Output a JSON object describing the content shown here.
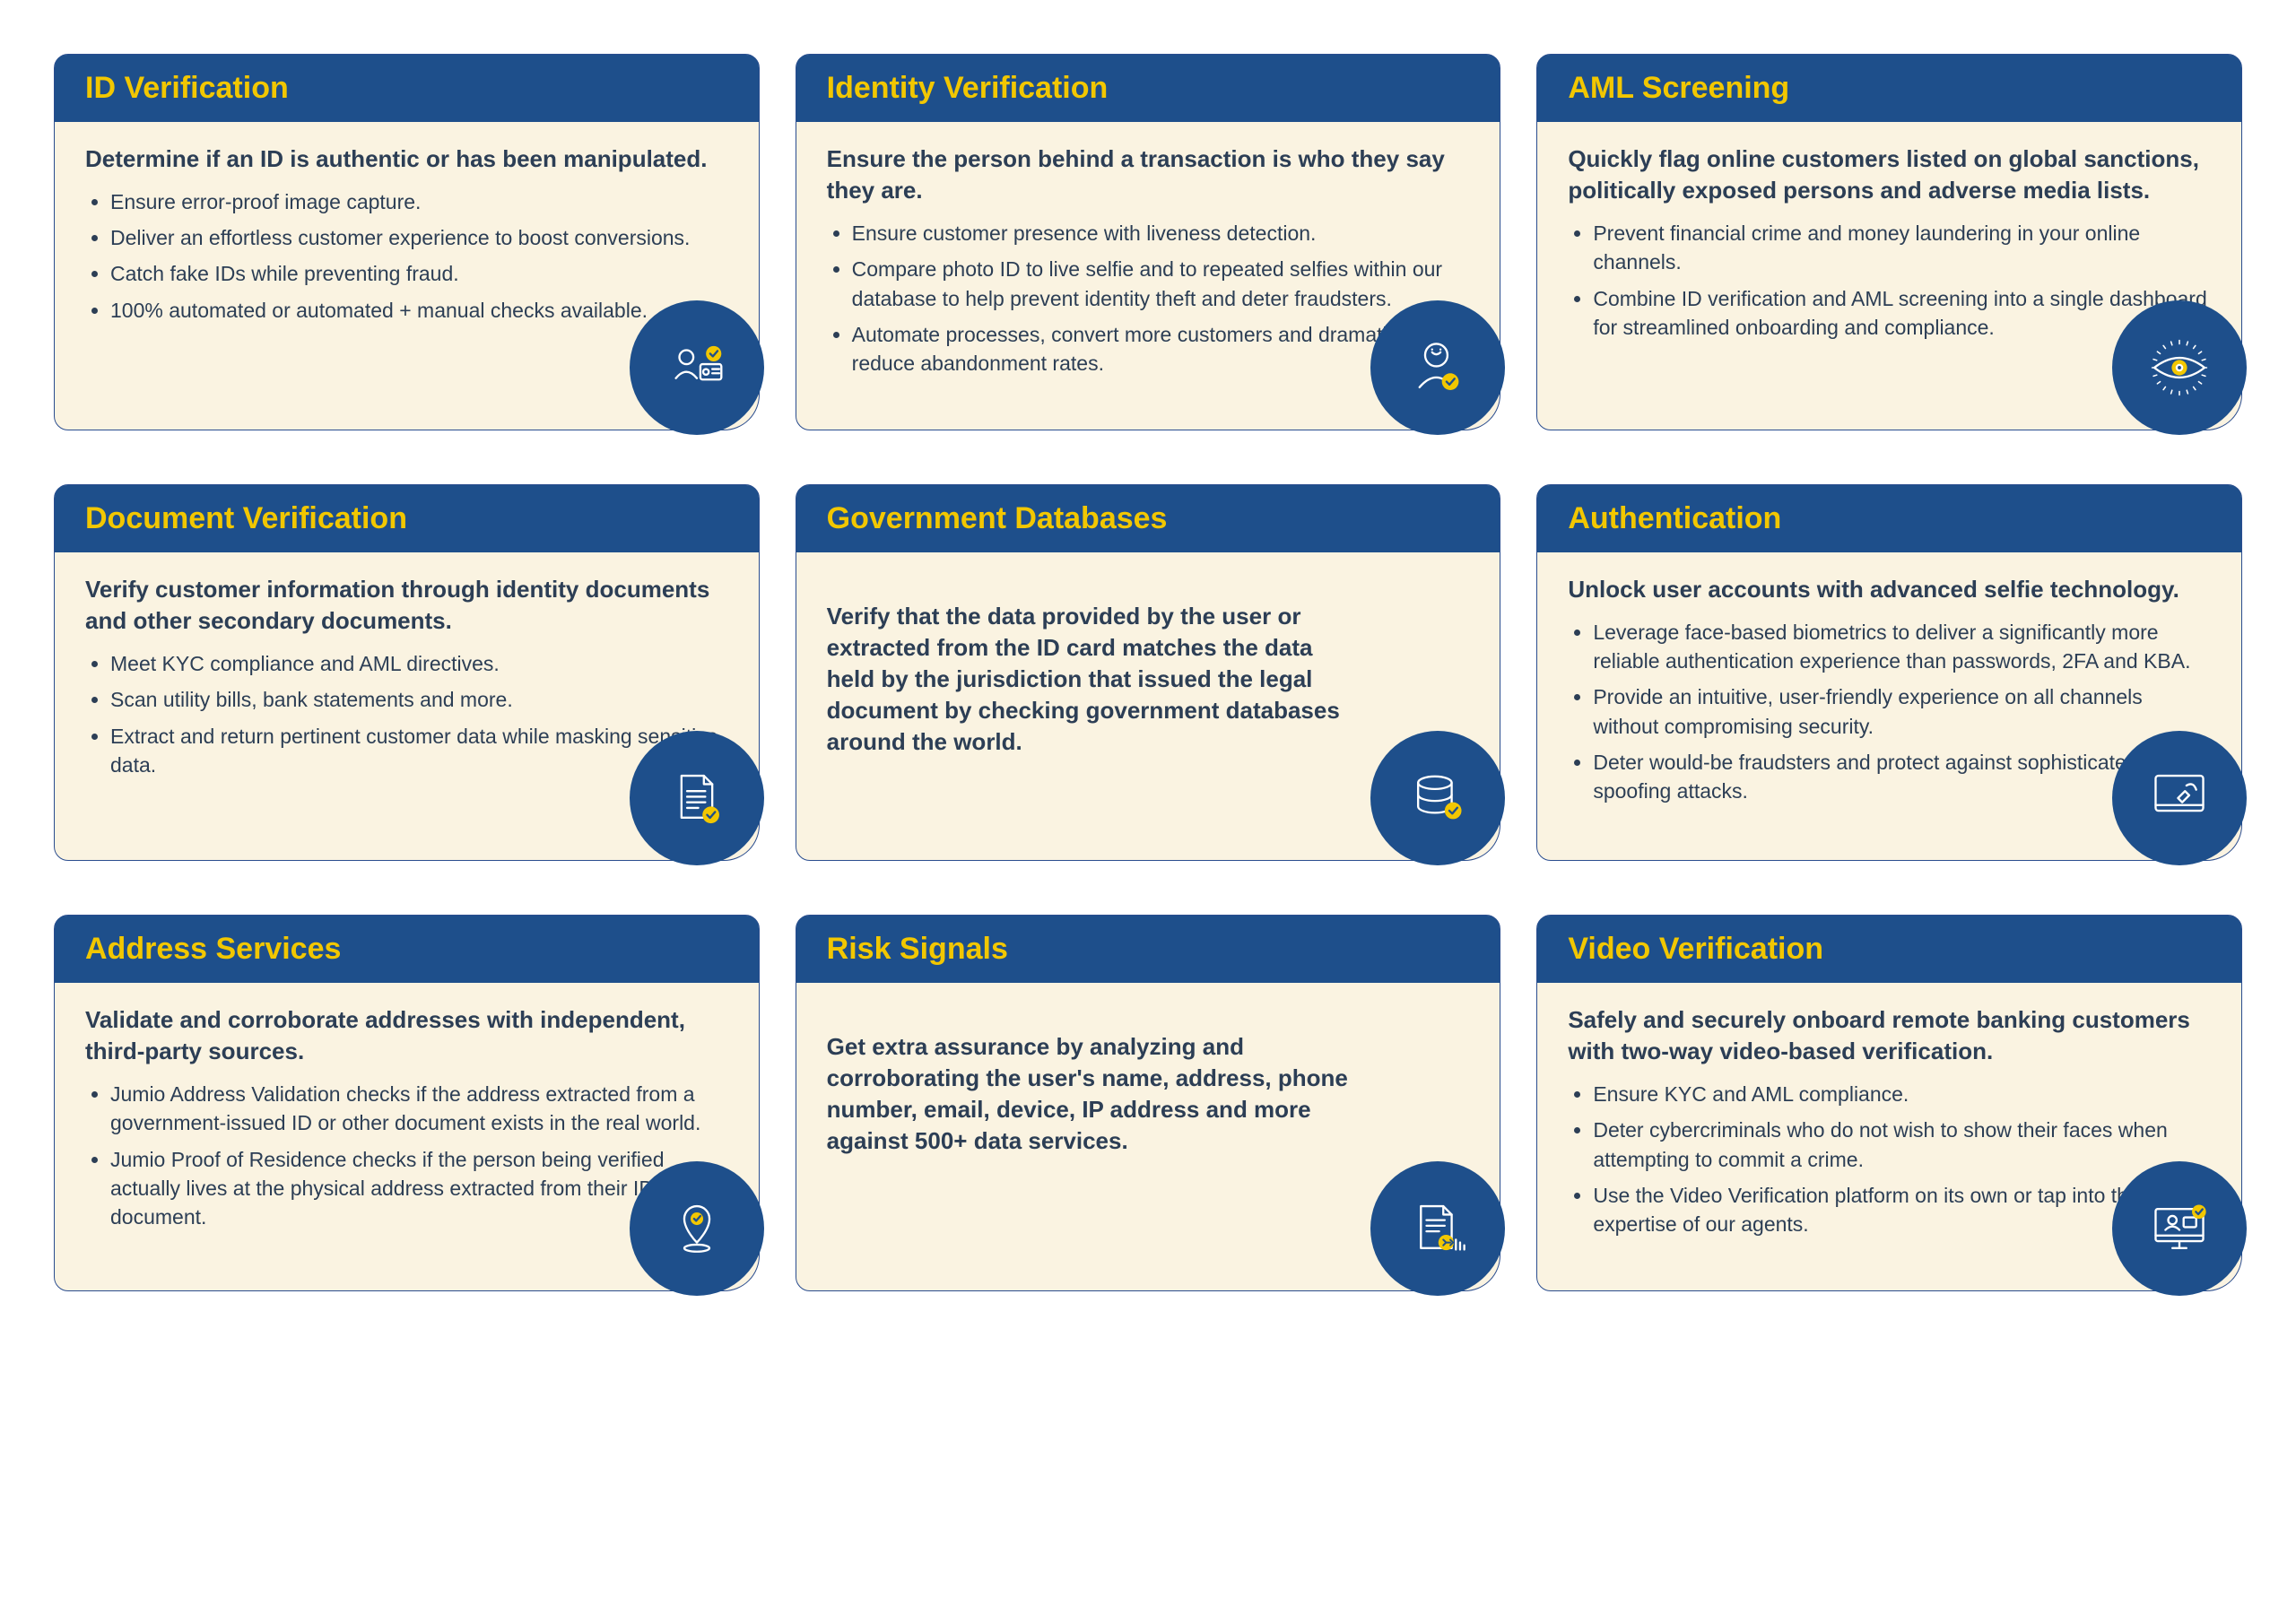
{
  "colors": {
    "header_bg": "#1e4f8b",
    "header_text": "#f2c700",
    "card_bg": "#faf3e1",
    "card_border": "#2a4d8f",
    "body_text": "#2c3e55",
    "icon_bg": "#1e4f8b",
    "icon_stroke": "#ffffff",
    "icon_accent": "#f2c700"
  },
  "layout": {
    "columns": 3,
    "rows": 3,
    "card_radius": 16,
    "card_br_radius": 40,
    "icon_diameter": 150
  },
  "cards": [
    {
      "title": "ID Verification",
      "lead": "Determine if an ID is authentic or has been manipulated.",
      "bullets": [
        "Ensure error-proof image capture.",
        "Deliver an effortless customer experience to boost conversions.",
        "Catch fake IDs while preventing fraud.",
        "100% automated or automated + manual checks available."
      ],
      "icon": "id-card"
    },
    {
      "title": "Identity Verification",
      "lead": "Ensure the person behind a transaction is who they say they are.",
      "bullets": [
        "Ensure customer presence with liveness detection.",
        "Compare photo ID to live selfie and to repeated selfies within our database to help prevent identity theft and deter fraudsters.",
        "Automate processes, convert more customers and dramatically reduce abandonment rates."
      ],
      "icon": "person-check"
    },
    {
      "title": "AML Screening",
      "lead": "Quickly flag online customers listed on global sanctions, politically exposed persons and adverse media lists.",
      "bullets": [
        "Prevent financial crime and money laundering in your online channels.",
        "Combine ID verification and AML screening into a single dashboard for streamlined onboarding and compliance."
      ],
      "icon": "eye"
    },
    {
      "title": "Document Verification",
      "lead": "Verify customer information through identity documents and other secondary documents.",
      "bullets": [
        " Meet KYC compliance and AML directives.",
        "Scan utility bills, bank statements and more.",
        "Extract and return pertinent customer data while masking sensitive data."
      ],
      "icon": "document-check"
    },
    {
      "title": "Government Databases",
      "lead": "Verify that the data provided by the user or extracted from the ID card matches the data held by the jurisdiction that issued the legal document by checking government databases around the world.",
      "bullets": [],
      "icon": "database-check"
    },
    {
      "title": "Authentication",
      "lead": "Unlock user accounts with  advanced selfie technology.",
      "bullets": [
        "Leverage face-based biometrics to deliver a significantly more reliable authentication experience than passwords, 2FA and KBA.",
        "Provide an intuitive, user-friendly experience on all channels without compromising security.",
        "Deter would-be fraudsters and protect against sophisticated spoofing attacks."
      ],
      "icon": "touch-screen"
    },
    {
      "title": "Address Services",
      "lead": "Validate and corroborate addresses with independent, third-party sources.",
      "bullets": [
        "Jumio Address Validation checks if the address extracted from a government-issued ID or other document exists in the real world.",
        "Jumio Proof of Residence checks if the person being verified actually lives at the physical address extracted from their ID or document."
      ],
      "icon": "location-check"
    },
    {
      "title": "Risk Signals",
      "lead": "Get extra assurance by analyzing and corroborating the user's name, address, phone number, email, device, IP address and more against 500+ data services.",
      "bullets": [],
      "icon": "report-risk"
    },
    {
      "title": "Video Verification",
      "lead": "Safely and securely onboard remote banking customers with two-way video-based verification.",
      "bullets": [
        "Ensure KYC and AML compliance.",
        "Deter cybercriminals who do not wish to show their faces when attempting to commit a crime.",
        "Use the Video Verification platform on its own or tap into the expertise of our agents."
      ],
      "icon": "video-monitor"
    }
  ]
}
